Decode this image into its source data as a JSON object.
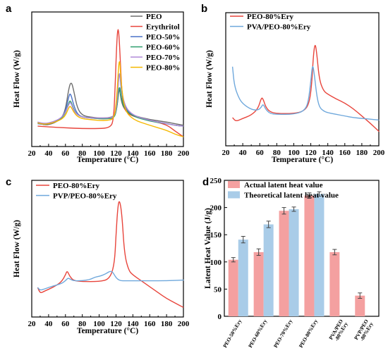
{
  "chart_data": [
    {
      "panel": "a",
      "type": "line",
      "xlabel": "Temperature (°C)",
      "ylabel": "Heat Flow (W/g)",
      "xlim": [
        20,
        200
      ],
      "xticks": [
        "20",
        "40",
        "60",
        "80",
        "100",
        "120",
        "140",
        "160",
        "180",
        "200"
      ],
      "legend_position": "top-right",
      "series": [
        {
          "name": "PEO",
          "color": "#6e6e6e",
          "x": [
            27,
            35,
            45,
            55,
            60,
            64,
            67,
            70,
            74,
            80,
            90,
            100,
            110,
            118,
            121,
            124,
            126,
            130,
            140,
            160,
            180,
            190,
            200
          ],
          "y": [
            0.4,
            0.36,
            0.38,
            0.44,
            0.55,
            0.82,
            0.9,
            0.78,
            0.57,
            0.48,
            0.46,
            0.45,
            0.45,
            0.47,
            0.56,
            0.85,
            0.66,
            0.55,
            0.48,
            0.43,
            0.4,
            0.38,
            0.36
          ]
        },
        {
          "name": "Erythritol",
          "color": "#e8453c",
          "x": [
            27,
            40,
            60,
            80,
            100,
            112,
            117,
            119,
            121,
            122.5,
            124,
            126,
            128,
            132,
            140,
            160,
            180,
            190,
            200
          ],
          "y": [
            0.35,
            0.34,
            0.33,
            0.32,
            0.32,
            0.33,
            0.4,
            0.85,
            1.4,
            1.58,
            1.4,
            0.95,
            0.62,
            0.52,
            0.47,
            0.42,
            0.37,
            0.29,
            0.22
          ]
        },
        {
          "name": "PEO-50%",
          "color": "#4a72c8",
          "x": [
            27,
            35,
            45,
            55,
            60,
            64,
            66,
            70,
            74,
            80,
            90,
            100,
            110,
            118,
            121,
            124,
            126,
            130,
            140,
            160,
            180,
            190,
            200
          ],
          "y": [
            0.38,
            0.37,
            0.39,
            0.44,
            0.53,
            0.72,
            0.76,
            0.6,
            0.5,
            0.46,
            0.45,
            0.44,
            0.44,
            0.45,
            0.6,
            1.08,
            0.8,
            0.58,
            0.48,
            0.42,
            0.38,
            0.36,
            0.35
          ]
        },
        {
          "name": "PEO-60%",
          "color": "#2e9e6e",
          "x": [
            27,
            35,
            45,
            55,
            60,
            64,
            66,
            70,
            74,
            80,
            90,
            100,
            110,
            118,
            121,
            124,
            126,
            130,
            140,
            160,
            180,
            190,
            200
          ],
          "y": [
            0.39,
            0.37,
            0.39,
            0.44,
            0.51,
            0.64,
            0.67,
            0.55,
            0.49,
            0.46,
            0.45,
            0.44,
            0.44,
            0.45,
            0.56,
            0.88,
            0.7,
            0.56,
            0.47,
            0.41,
            0.38,
            0.36,
            0.35
          ]
        },
        {
          "name": "PEO-70%",
          "color": "#b08ad8",
          "x": [
            27,
            35,
            45,
            55,
            60,
            64,
            66,
            70,
            74,
            80,
            90,
            100,
            110,
            118,
            121,
            124,
            126,
            130,
            140,
            160,
            180,
            190,
            200
          ],
          "y": [
            0.4,
            0.38,
            0.4,
            0.45,
            0.52,
            0.62,
            0.65,
            0.54,
            0.49,
            0.46,
            0.45,
            0.45,
            0.45,
            0.46,
            0.6,
            1.06,
            0.85,
            0.6,
            0.48,
            0.42,
            0.38,
            0.36,
            0.35
          ]
        },
        {
          "name": "PEO-80%",
          "color": "#f5b800",
          "x": [
            27,
            35,
            45,
            55,
            60,
            64,
            66,
            70,
            74,
            80,
            90,
            100,
            110,
            118,
            121,
            124,
            126,
            130,
            140,
            160,
            180,
            190,
            200
          ],
          "y": [
            0.39,
            0.37,
            0.39,
            0.43,
            0.48,
            0.58,
            0.6,
            0.52,
            0.47,
            0.44,
            0.43,
            0.42,
            0.42,
            0.44,
            0.7,
            1.25,
            0.88,
            0.55,
            0.43,
            0.36,
            0.3,
            0.25,
            0.22
          ]
        }
      ]
    },
    {
      "panel": "b",
      "type": "line",
      "xlabel": "Temperature (°C)",
      "ylabel": "Heat Flow (W/g)",
      "xlim": [
        20,
        200
      ],
      "xticks": [
        "20",
        "40",
        "60",
        "80",
        "100",
        "120",
        "140",
        "160",
        "180",
        "200"
      ],
      "legend_position": "top-left",
      "series": [
        {
          "name": "PEO-80%Ery",
          "color": "#e8453c",
          "x": [
            28,
            32,
            40,
            50,
            58,
            62,
            64,
            67,
            72,
            80,
            100,
            112,
            118,
            121,
            123,
            125,
            127,
            130,
            135,
            140,
            150,
            160,
            170,
            180,
            190,
            200
          ],
          "y": [
            0.45,
            0.4,
            0.44,
            0.48,
            0.56,
            0.7,
            0.68,
            0.58,
            0.52,
            0.5,
            0.5,
            0.53,
            0.62,
            0.85,
            1.22,
            1.38,
            1.25,
            0.92,
            0.78,
            0.74,
            0.68,
            0.63,
            0.56,
            0.47,
            0.38,
            0.28
          ]
        },
        {
          "name": "PVA/PEO-80%Ery",
          "color": "#6fa8dc",
          "x": [
            28,
            30,
            35,
            40,
            50,
            58,
            62,
            64,
            67,
            72,
            80,
            100,
            112,
            117,
            120,
            122,
            124,
            127,
            130,
            135,
            140,
            150,
            160,
            170,
            180,
            190,
            200
          ],
          "y": [
            1.08,
            0.85,
            0.7,
            0.62,
            0.55,
            0.54,
            0.58,
            0.62,
            0.55,
            0.5,
            0.49,
            0.49,
            0.53,
            0.63,
            0.9,
            1.12,
            1.0,
            0.72,
            0.58,
            0.53,
            0.51,
            0.49,
            0.47,
            0.45,
            0.44,
            0.43,
            0.42
          ]
        }
      ]
    },
    {
      "panel": "c",
      "type": "line",
      "xlabel": "Temperature (°C)",
      "ylabel": "Heat Flow (W/g)",
      "xlim": [
        20,
        200
      ],
      "xticks": [
        "20",
        "40",
        "60",
        "80",
        "100",
        "120",
        "140",
        "160",
        "180",
        "200"
      ],
      "legend_position": "top-left",
      "series": [
        {
          "name": "PEO-80%Ery",
          "color": "#e8453c",
          "x": [
            27,
            30,
            35,
            45,
            55,
            60,
            62,
            65,
            70,
            80,
            100,
            112,
            118,
            120,
            122,
            124,
            127,
            130,
            135,
            140,
            150,
            160,
            170,
            180,
            190,
            200
          ],
          "y": [
            0.55,
            0.47,
            0.5,
            0.55,
            0.62,
            0.72,
            0.78,
            0.7,
            0.64,
            0.63,
            0.63,
            0.66,
            0.85,
            1.25,
            1.62,
            1.75,
            1.55,
            1.0,
            0.78,
            0.72,
            0.64,
            0.56,
            0.48,
            0.4,
            0.34,
            0.28
          ]
        },
        {
          "name": "PVP/PEO-80%Ery",
          "color": "#6fa8dc",
          "x": [
            27,
            30,
            35,
            45,
            55,
            60,
            63,
            66,
            70,
            80,
            90,
            95,
            100,
            105,
            110,
            113,
            116,
            119,
            122,
            126,
            130,
            140,
            150,
            160,
            180,
            200
          ],
          "y": [
            0.55,
            0.51,
            0.53,
            0.57,
            0.6,
            0.64,
            0.68,
            0.66,
            0.64,
            0.64,
            0.66,
            0.69,
            0.7,
            0.72,
            0.75,
            0.77,
            0.76,
            0.7,
            0.66,
            0.64,
            0.64,
            0.64,
            0.64,
            0.64,
            0.64,
            0.65
          ]
        }
      ]
    },
    {
      "panel": "d",
      "type": "bar",
      "ylabel": "Latent Heat Value (J/g)",
      "ylim": [
        0,
        250
      ],
      "yticks": [
        "0",
        "50",
        "100",
        "150",
        "200",
        "250"
      ],
      "categories": [
        "PEO-50%Ery",
        "PEO-60%Ery",
        "PEO-70%Ery",
        "PEO-80%Ery",
        "PVA/PEO\n-80%Ery",
        "PVP/PEO\n-80%Ery"
      ],
      "legend_position": "top-left",
      "series": [
        {
          "name": "Actual latent heat value",
          "color": "#f4a0a0",
          "values": [
            104,
            118,
            194,
            222,
            118,
            38
          ],
          "errors": [
            4,
            6,
            6,
            5,
            5,
            5
          ]
        },
        {
          "name": "Theoretical latent heat value",
          "color": "#a9cce8",
          "values": [
            141,
            169,
            197,
            225,
            null,
            null
          ],
          "errors": [
            6,
            6,
            4,
            4,
            null,
            null
          ]
        }
      ]
    }
  ]
}
